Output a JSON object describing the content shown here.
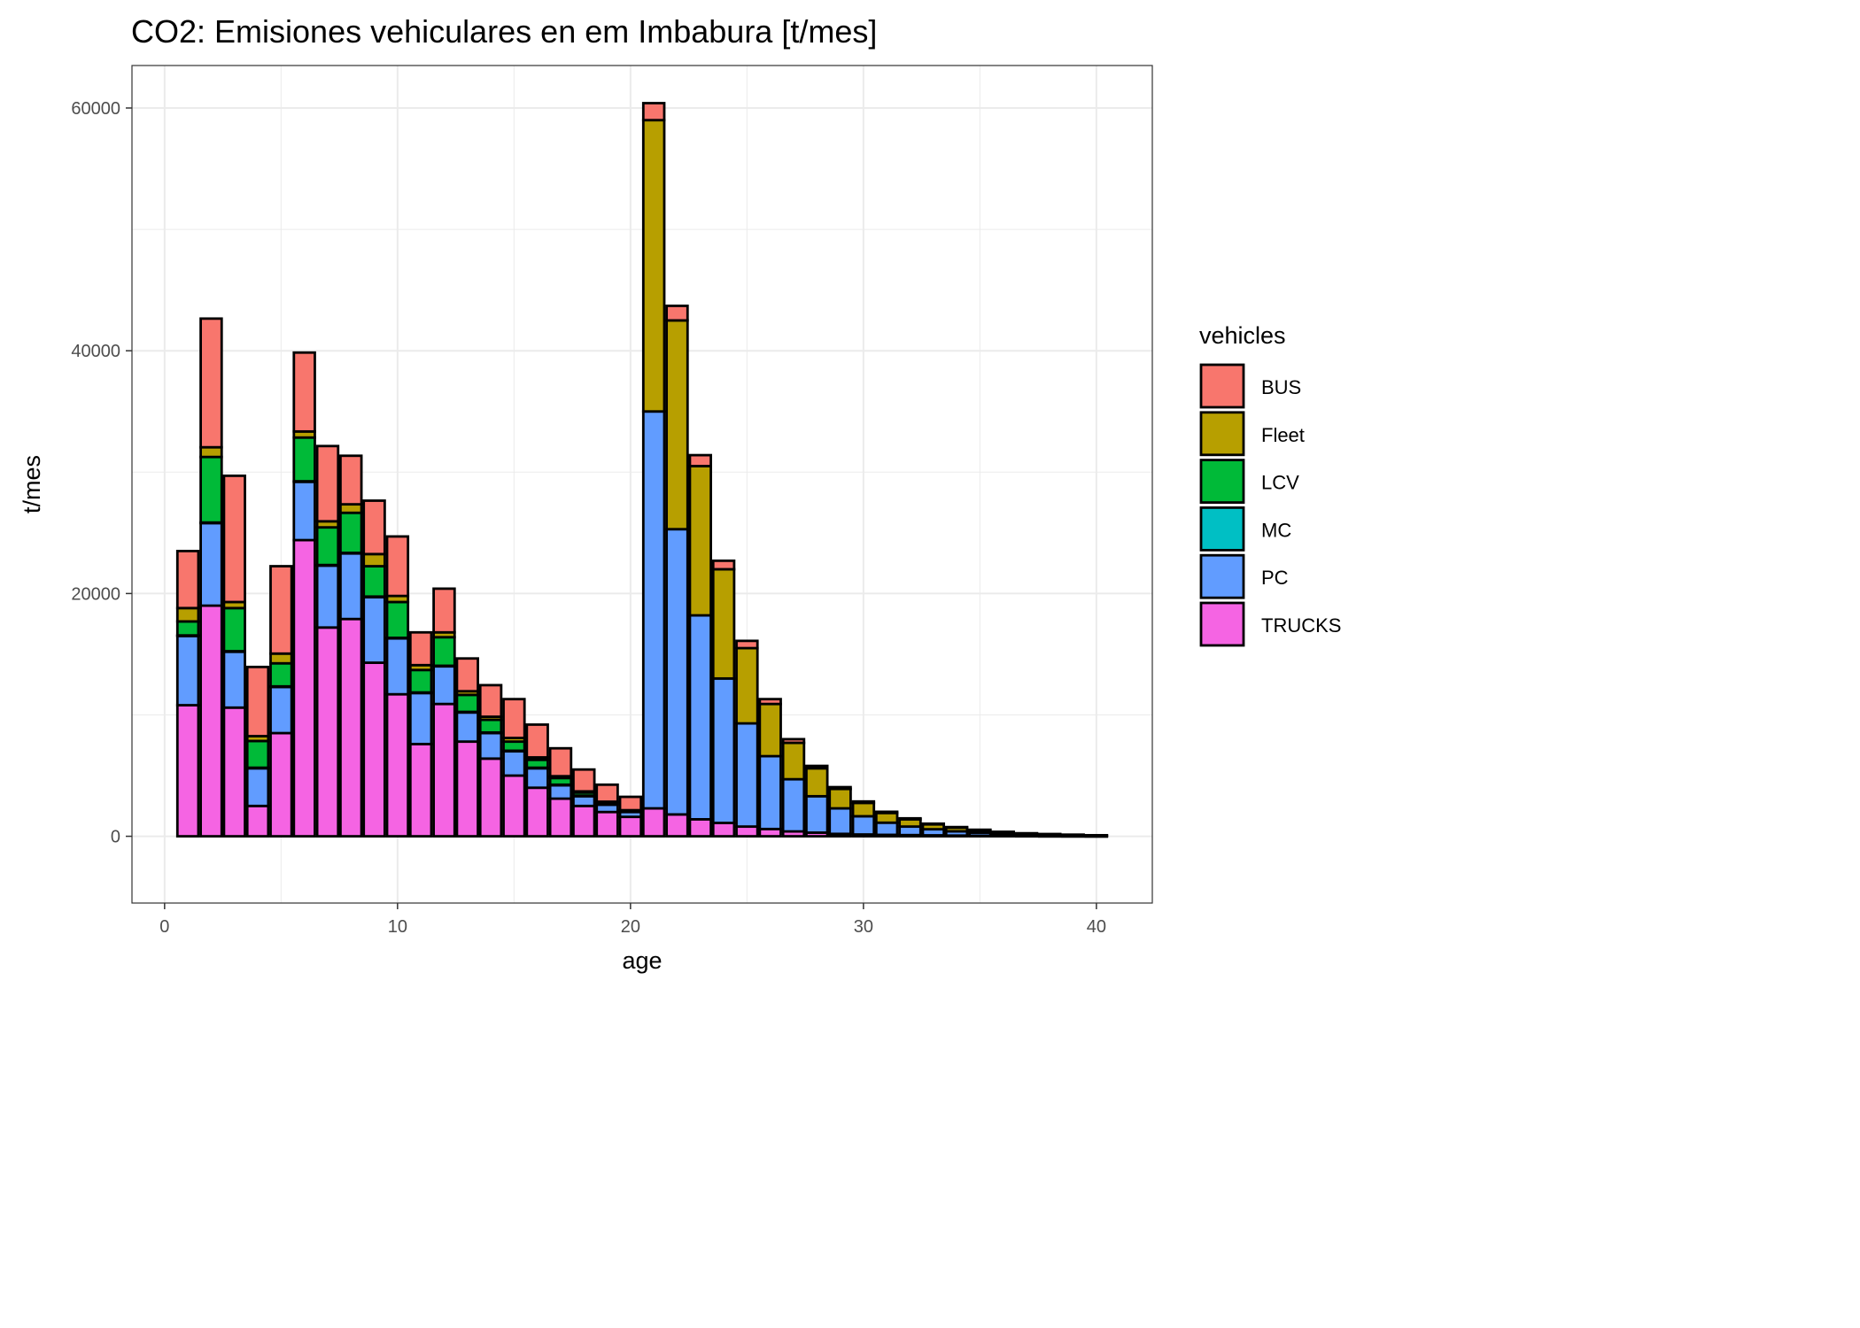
{
  "chart_data": {
    "type": "bar",
    "stacked": true,
    "title": "CO2: Emisiones vehiculares en  em Imbabura [t/mes]",
    "xlabel": "age",
    "ylabel": "t/mes",
    "xlim": [
      -1.4,
      42.4
    ],
    "ylim": [
      -5500,
      63500
    ],
    "x_ticks": [
      0,
      10,
      20,
      30,
      40
    ],
    "x_tick_labels": [
      "0",
      "10",
      "20",
      "30",
      "40"
    ],
    "y_ticks": [
      0,
      20000,
      40000,
      60000
    ],
    "y_tick_labels": [
      "0",
      "20000",
      "40000",
      "60000"
    ],
    "grid": true,
    "legend": {
      "title": "vehicles",
      "position": "right",
      "entries": [
        "BUS",
        "Fleet",
        "LCV",
        "MC",
        "PC",
        "TRUCKS"
      ]
    },
    "colors": {
      "BUS": "#F8766D",
      "Fleet": "#B79F00",
      "LCV": "#00BA38",
      "MC": "#00BFC4",
      "PC": "#619CFF",
      "TRUCKS": "#F564E3"
    },
    "x": [
      1,
      2,
      3,
      4,
      5,
      6,
      7,
      8,
      9,
      10,
      11,
      12,
      13,
      14,
      15,
      16,
      17,
      18,
      19,
      20,
      21,
      22,
      23,
      24,
      25,
      26,
      27,
      28,
      29,
      30,
      31,
      32,
      33,
      34,
      35,
      36,
      37,
      38,
      39,
      40
    ],
    "series": [
      {
        "name": "TRUCKS",
        "values": [
          10800,
          19000,
          10600,
          2500,
          8500,
          24400,
          17200,
          17900,
          14300,
          11700,
          7600,
          10900,
          7800,
          6400,
          5000,
          4000,
          3100,
          2500,
          2000,
          1600,
          2300,
          1800,
          1400,
          1100,
          800,
          600,
          400,
          300,
          200,
          150,
          120,
          100,
          80,
          60,
          50,
          40,
          30,
          20,
          15,
          10
        ]
      },
      {
        "name": "PC",
        "values": [
          5700,
          6800,
          4600,
          3100,
          3800,
          4800,
          5100,
          5400,
          5400,
          4600,
          4200,
          3100,
          2400,
          2100,
          2000,
          1600,
          1100,
          800,
          600,
          400,
          32700,
          23500,
          16800,
          11900,
          8500,
          6000,
          4300,
          3000,
          2100,
          1500,
          1000,
          700,
          500,
          350,
          250,
          150,
          100,
          70,
          50,
          30
        ]
      },
      {
        "name": "MC",
        "values": [
          50,
          50,
          50,
          50,
          50,
          50,
          50,
          50,
          50,
          50,
          50,
          50,
          50,
          50,
          50,
          50,
          50,
          50,
          50,
          50,
          0,
          0,
          0,
          0,
          0,
          0,
          0,
          0,
          0,
          0,
          0,
          0,
          0,
          0,
          0,
          0,
          0,
          0,
          0,
          0
        ]
      },
      {
        "name": "LCV",
        "values": [
          1150,
          5400,
          3550,
          2200,
          1900,
          3600,
          3100,
          3300,
          2500,
          2950,
          1850,
          2350,
          1400,
          1050,
          750,
          650,
          550,
          250,
          150,
          50,
          0,
          0,
          0,
          0,
          0,
          0,
          0,
          0,
          0,
          0,
          0,
          0,
          0,
          0,
          0,
          0,
          0,
          0,
          0,
          0
        ]
      },
      {
        "name": "Fleet",
        "values": [
          1100,
          800,
          500,
          400,
          800,
          500,
          500,
          700,
          1000,
          500,
          400,
          400,
          300,
          250,
          300,
          200,
          150,
          100,
          50,
          50,
          24000,
          17200,
          12300,
          9000,
          6200,
          4300,
          3000,
          2300,
          1600,
          1100,
          800,
          600,
          400,
          300,
          200,
          150,
          100,
          80,
          60,
          40
        ]
      },
      {
        "name": "BUS",
        "values": [
          4700,
          10600,
          10400,
          5700,
          7200,
          6500,
          6200,
          4000,
          4400,
          4900,
          2700,
          3600,
          2700,
          2600,
          3200,
          2700,
          2300,
          1800,
          1400,
          1100,
          1400,
          1200,
          900,
          700,
          600,
          400,
          300,
          200,
          150,
          120,
          100,
          80,
          60,
          50,
          40,
          30,
          20,
          15,
          10,
          8
        ]
      }
    ]
  }
}
